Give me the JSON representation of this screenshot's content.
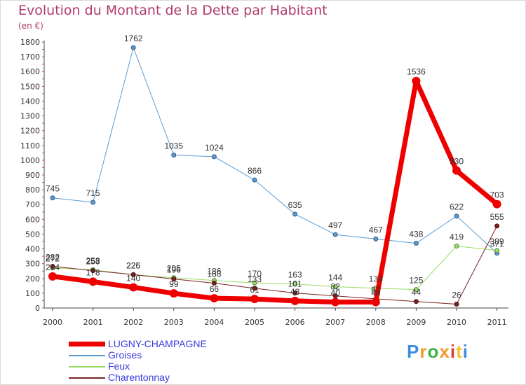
{
  "chart_data": {
    "type": "line",
    "title": "Evolution du Montant de la Dette par Habitant",
    "unit_label": "(en €)",
    "xlabel": "",
    "ylabel": "",
    "categories": [
      "2000",
      "2001",
      "2002",
      "2003",
      "2004",
      "2005",
      "2006",
      "2007",
      "2008",
      "2009",
      "2010",
      "2011"
    ],
    "ylim": [
      0,
      1800
    ],
    "yticks": [
      0,
      100,
      200,
      300,
      400,
      500,
      600,
      700,
      800,
      900,
      1000,
      1100,
      1200,
      1300,
      1400,
      1500,
      1600,
      1700,
      1800
    ],
    "grid": false,
    "legend_position": "bottom-left",
    "series": [
      {
        "name": "LUGNY-CHAMPAGNE",
        "color": "#ee0000",
        "width": 7,
        "values": [
          214,
          178,
          140,
          99,
          66,
          61,
          48,
          40,
          40,
          1536,
          930,
          703
        ]
      },
      {
        "name": "Groises",
        "color": "#5a9bd4",
        "width": 1,
        "values": [
          745,
          715,
          1762,
          1035,
          1024,
          866,
          635,
          497,
          467,
          438,
          622,
          371
        ]
      },
      {
        "name": "Feux",
        "color": "#99dd66",
        "width": 1,
        "values": [
          272,
          258,
          225,
          205,
          186,
          170,
          163,
          144,
          134,
          125,
          419,
          389
        ]
      },
      {
        "name": "Charentonnay",
        "color": "#7a2020",
        "width": 1,
        "values": [
          282,
          253,
          226,
          196,
          168,
          133,
          101,
          82,
          62,
          44,
          26,
          555
        ]
      }
    ]
  },
  "logo": {
    "letters": [
      "P",
      "r",
      "o",
      "x",
      "i",
      "t",
      "i"
    ],
    "colors": [
      "#3b8ede",
      "#f29b2e",
      "#3bb34a",
      "#f29b2e",
      "#e23b3b",
      "#f2c62e",
      "#3b8ede"
    ]
  }
}
